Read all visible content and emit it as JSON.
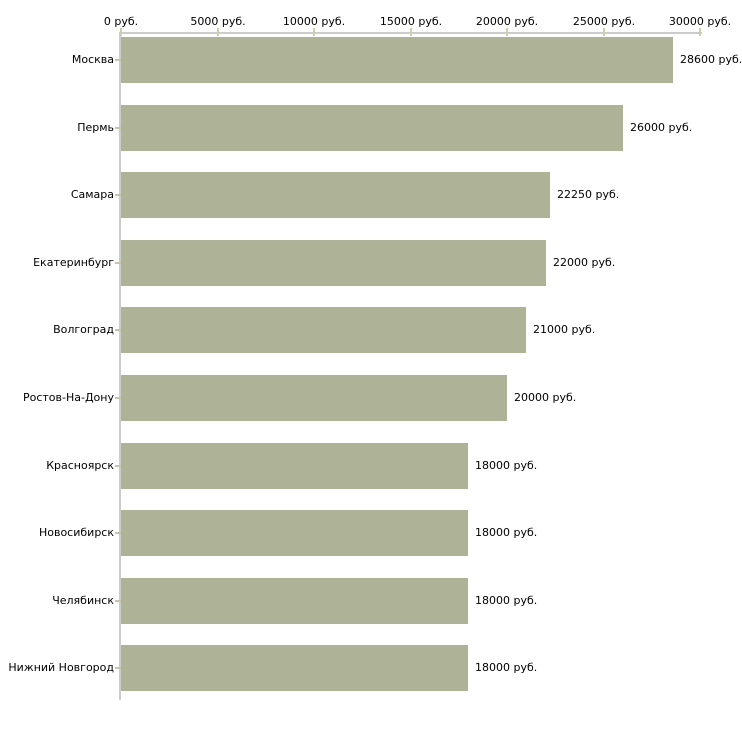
{
  "chart_data": {
    "type": "bar",
    "orientation": "horizontal",
    "title": "",
    "xlabel": "",
    "ylabel": "",
    "unit": "руб.",
    "categories": [
      "Москва",
      "Пермь",
      "Самара",
      "Екатеринбург",
      "Волгоград",
      "Ростов-На-Дону",
      "Красноярск",
      "Новосибирск",
      "Челябинск",
      "Нижний Новгород"
    ],
    "values": [
      28600,
      26000,
      22250,
      22000,
      21000,
      20000,
      18000,
      18000,
      18000,
      18000
    ],
    "value_labels": [
      "28600 руб.",
      "26000 руб.",
      "22250 руб.",
      "22000 руб.",
      "21000 руб.",
      "20000 руб.",
      "18000 руб.",
      "18000 руб.",
      "18000 руб.",
      "18000 руб."
    ],
    "xlim": [
      0,
      30000
    ],
    "x_ticks": [
      {
        "value": 0,
        "label": "0 руб."
      },
      {
        "value": 5000,
        "label": "5000 руб."
      },
      {
        "value": 10000,
        "label": "10000 руб."
      },
      {
        "value": 15000,
        "label": "15000 руб."
      },
      {
        "value": 20000,
        "label": "20000 руб."
      },
      {
        "value": 25000,
        "label": "25000 руб."
      },
      {
        "value": 30000,
        "label": "30000 руб."
      }
    ],
    "grid": false,
    "legend_position": "none",
    "colors": {
      "bar": "#aeb297",
      "axis": "#cbcbcb",
      "axis_tick": "#cfcdad",
      "category_tick": "#c6c3ae",
      "text": "#000000",
      "background": "#ffffff"
    }
  }
}
